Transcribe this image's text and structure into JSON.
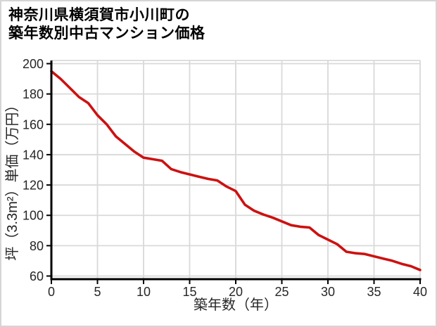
{
  "title": {
    "line1": "神奈川県横須賀市小川町の",
    "line2": "築年数別中古マンション価格"
  },
  "chart_data": {
    "type": "line",
    "title": "神奈川県横須賀市小川町の築年数別中古マンション価格",
    "xlabel": "築年数（年）",
    "ylabel": "坪（3.3m²）単価（万円）",
    "x": [
      0,
      1,
      2,
      3,
      4,
      5,
      6,
      7,
      8,
      9,
      10,
      11,
      12,
      13,
      14,
      15,
      16,
      17,
      18,
      19,
      20,
      21,
      22,
      23,
      24,
      25,
      26,
      27,
      28,
      29,
      30,
      31,
      32,
      33,
      34,
      35,
      36,
      37,
      38,
      39,
      40
    ],
    "values": [
      195,
      190,
      184,
      178,
      174,
      166,
      160,
      152,
      147,
      142,
      138,
      137,
      136,
      130.5,
      128.5,
      127,
      125.5,
      124,
      123,
      119,
      116,
      107,
      103,
      100.5,
      98.5,
      96,
      93.5,
      92.5,
      92,
      87,
      84,
      81,
      76,
      75,
      74.5,
      73,
      71.5,
      70,
      68,
      66.5,
      64
    ],
    "xticks": [
      0,
      5,
      10,
      15,
      20,
      25,
      30,
      35,
      40
    ],
    "yticks": [
      60,
      80,
      100,
      120,
      140,
      160,
      180,
      200
    ],
    "xlim": [
      0,
      40
    ],
    "ylim": [
      60,
      200
    ],
    "grid": true,
    "legend": "none",
    "line_color": "#cc1111",
    "grid_color": "#d9d9d9",
    "axis_color": "#000000",
    "tick_label_color": "#262626",
    "background_color": "#ffffff",
    "frame_border_color": "#d5d5d5"
  }
}
